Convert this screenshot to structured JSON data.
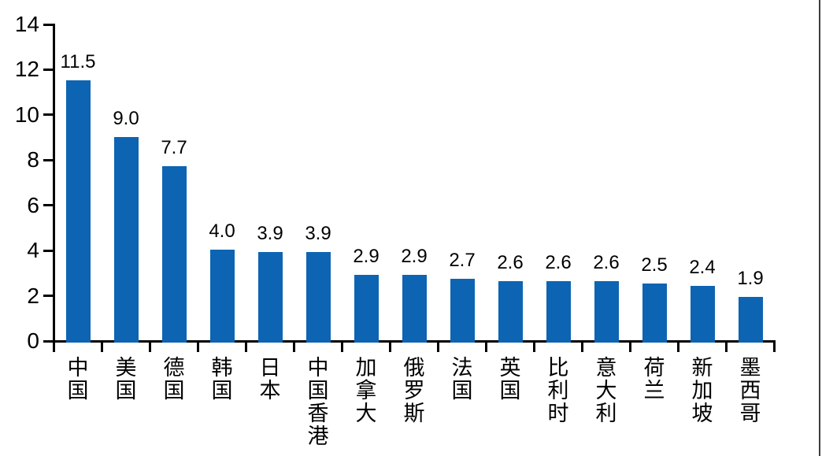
{
  "chart_data": {
    "type": "bar",
    "categories": [
      "中国",
      "美国",
      "德国",
      "韩国",
      "日本",
      "中国香港",
      "加拿大",
      "俄罗斯",
      "法国",
      "英国",
      "比利时",
      "意大利",
      "荷兰",
      "新加坡",
      "墨西哥"
    ],
    "values": [
      11.5,
      9.0,
      7.7,
      4.0,
      3.9,
      3.9,
      2.9,
      2.9,
      2.7,
      2.6,
      2.6,
      2.6,
      2.5,
      2.4,
      1.9
    ],
    "value_labels": [
      "11.5",
      "9.0",
      "7.7",
      "4.0",
      "3.9",
      "3.9",
      "2.9",
      "2.9",
      "2.7",
      "2.6",
      "2.6",
      "2.6",
      "2.5",
      "2.4",
      "1.9"
    ],
    "title": "",
    "xlabel": "",
    "ylabel": "",
    "ylim": [
      0,
      14
    ],
    "y_ticks": [
      0,
      2,
      4,
      6,
      8,
      10,
      12,
      14
    ],
    "y_tick_labels": [
      "0",
      "2",
      "4",
      "6",
      "8",
      "10",
      "12",
      "14"
    ],
    "grid": false,
    "legend": null,
    "bar_color": "#0D64B2",
    "axis_color": "#000000",
    "text_color": "#000000",
    "right_edge_line_color": "#3d3d3d"
  }
}
